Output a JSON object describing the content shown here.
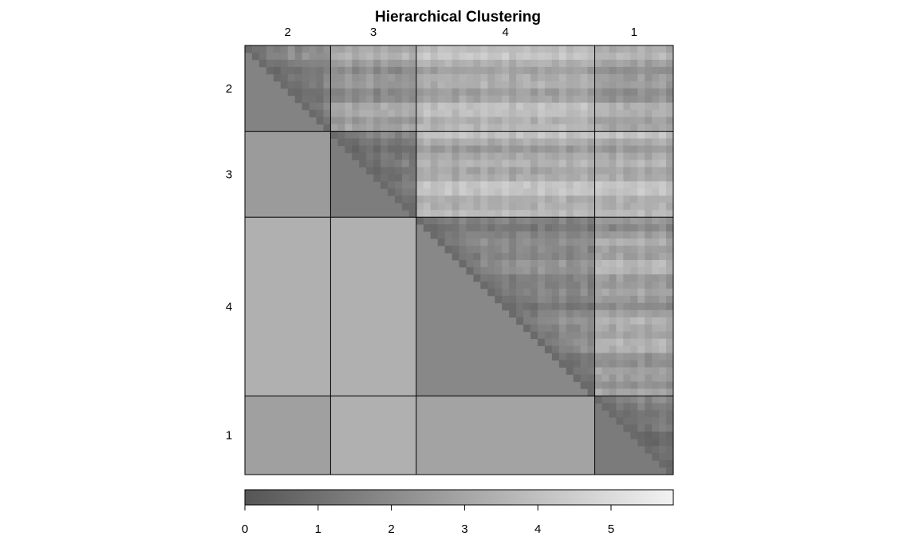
{
  "chart_data": {
    "type": "heatmap",
    "title": "Hierarchical Clustering",
    "clusters": [
      "2",
      "3",
      "4",
      "1"
    ],
    "cluster_sizes": [
      12,
      12,
      25,
      11
    ],
    "colorscale": {
      "low": "#555555",
      "high": "#f2f2f2",
      "min": 0,
      "max": 5.85
    },
    "colorbar_ticks": [
      "0",
      "1",
      "2",
      "3",
      "4",
      "5"
    ],
    "within_cluster_mean_distance": [
      1.7,
      1.5,
      1.9,
      1.4
    ],
    "between_cluster_mean_distance": {
      "3-2": 2.6,
      "4-2": 3.4,
      "4-3": 3.4,
      "1-2": 2.8,
      "1-3": 3.4,
      "1-4": 2.9
    },
    "upper_triangle": "individual pairwise distances (approx. range 0.4 to 5.8)",
    "lower_triangle": "cluster-average distances"
  }
}
